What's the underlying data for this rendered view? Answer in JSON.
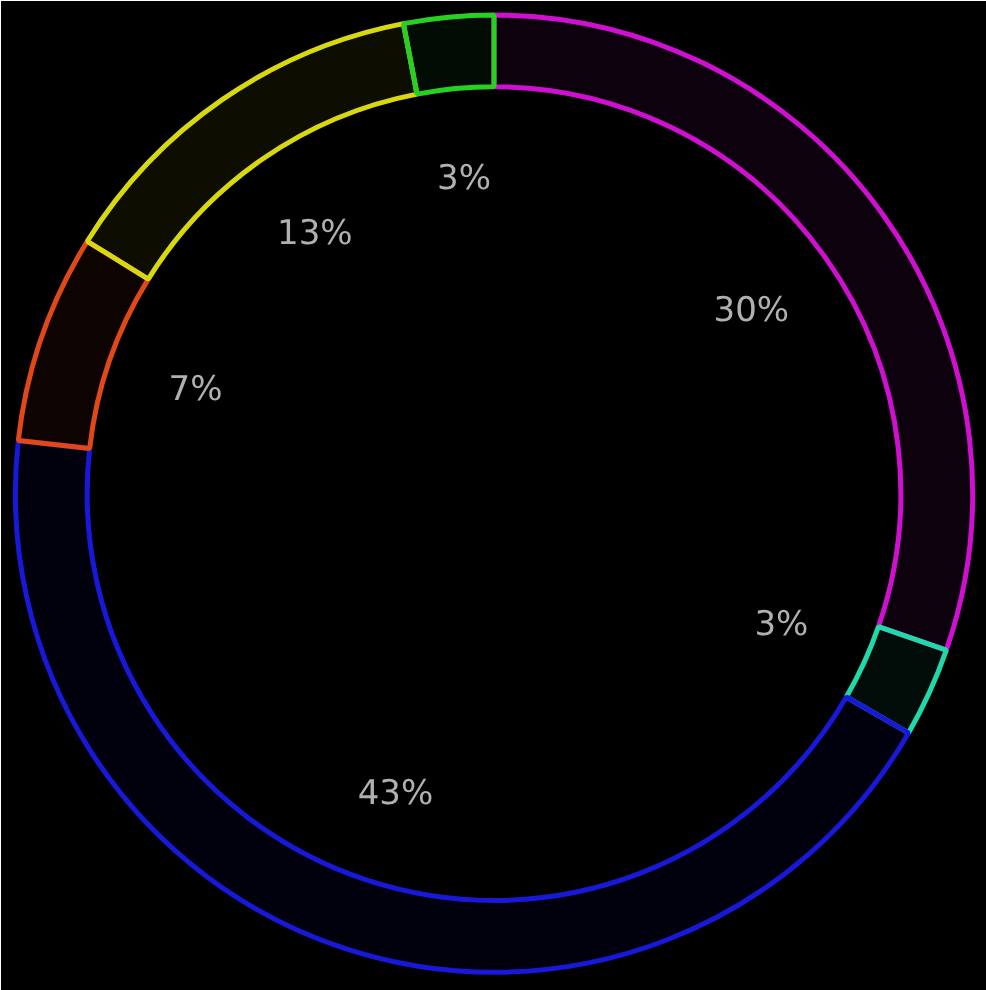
{
  "chart_data": {
    "type": "donut",
    "categories": [
      null,
      null,
      null,
      null,
      null,
      null
    ],
    "values": [
      30,
      3,
      43,
      7,
      13,
      3
    ],
    "colors": [
      "#d010d0",
      "#20d8a8",
      "#1818d8",
      "#e04818",
      "#d8d810",
      "#28d020"
    ],
    "value_labels": [
      "30%",
      "3%",
      "43%",
      "7%",
      "13%",
      "3%"
    ]
  }
}
